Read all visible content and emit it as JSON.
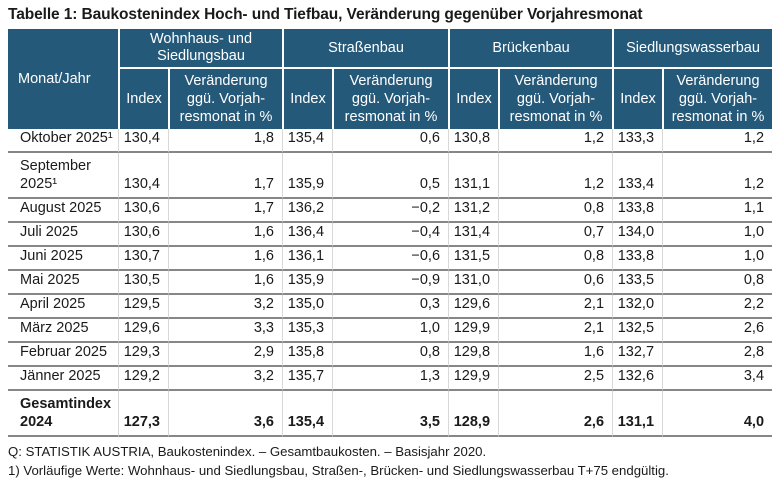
{
  "title": "Tabelle 1: Baukostenindex Hoch- und Tiefbau, Veränderung gegenüber Vorjahresmonat",
  "header": {
    "corner": "Monat/Jahr",
    "index_label": "Index",
    "change_label": "Veränderung ggü. Vorjahresmonat in %",
    "change_label_wrap": "Veränderung\nggü. Vorjah-\nresmonat in %",
    "groups": [
      {
        "label": "Wohnhaus- und Siedlungsbau",
        "wrap": "Wohnhaus- und\nSiedlungsbau"
      },
      {
        "label": "Straßenbau",
        "wrap": "Straßenbau"
      },
      {
        "label": "Brückenbau",
        "wrap": "Brückenbau"
      },
      {
        "label": "Siedlungswasserbau",
        "wrap": "Siedlungswasserbau"
      }
    ]
  },
  "chart_data": {
    "type": "table",
    "title": "Tabelle 1: Baukostenindex Hoch- und Tiefbau, Veränderung gegenüber Vorjahresmonat",
    "columns": [
      "Monat/Jahr",
      "Wohnhaus- und Siedlungsbau – Index",
      "Wohnhaus- und Siedlungsbau – Veränderung ggü. Vorjahresmonat in %",
      "Straßenbau – Index",
      "Straßenbau – Veränderung ggü. Vorjahresmonat in %",
      "Brückenbau – Index",
      "Brückenbau – Veränderung ggü. Vorjahresmonat in %",
      "Siedlungswasserbau – Index",
      "Siedlungswasserbau – Veränderung ggü. Vorjahresmonat in %"
    ],
    "rows": [
      {
        "month": "Oktober 2025¹",
        "values": [
          "130,4",
          "1,8",
          "135,4",
          "0,6",
          "130,8",
          "1,2",
          "133,3",
          "1,2"
        ]
      },
      {
        "month": "September 2025¹",
        "wrap": "September\n2025¹",
        "values": [
          "130,4",
          "1,7",
          "135,9",
          "0,5",
          "131,1",
          "1,2",
          "133,4",
          "1,2"
        ]
      },
      {
        "month": "August 2025",
        "values": [
          "130,6",
          "1,7",
          "136,2",
          "−0,2",
          "131,2",
          "0,8",
          "133,8",
          "1,1"
        ]
      },
      {
        "month": "Juli 2025",
        "values": [
          "130,6",
          "1,6",
          "136,4",
          "−0,4",
          "131,4",
          "0,7",
          "134,0",
          "1,0"
        ]
      },
      {
        "month": "Juni 2025",
        "values": [
          "130,7",
          "1,6",
          "136,1",
          "−0,6",
          "131,5",
          "0,8",
          "133,8",
          "1,0"
        ]
      },
      {
        "month": "Mai 2025",
        "values": [
          "130,5",
          "1,6",
          "135,9",
          "−0,9",
          "131,0",
          "0,6",
          "133,5",
          "0,8"
        ]
      },
      {
        "month": "April 2025",
        "values": [
          "129,5",
          "3,2",
          "135,0",
          "0,3",
          "129,6",
          "2,1",
          "132,0",
          "2,2"
        ]
      },
      {
        "month": "März 2025",
        "values": [
          "129,6",
          "3,3",
          "135,3",
          "1,0",
          "129,9",
          "2,1",
          "132,5",
          "2,6"
        ]
      },
      {
        "month": "Februar 2025",
        "values": [
          "129,3",
          "2,9",
          "135,8",
          "0,8",
          "129,8",
          "1,6",
          "132,7",
          "2,8"
        ]
      },
      {
        "month": "Jänner 2025",
        "values": [
          "129,2",
          "3,2",
          "135,7",
          "1,3",
          "129,9",
          "2,5",
          "132,6",
          "3,4"
        ]
      },
      {
        "month": "Gesamtindex 2024",
        "wrap": "Gesamtindex\n2024",
        "bold": true,
        "values": [
          "127,3",
          "3,6",
          "135,4",
          "3,5",
          "128,9",
          "2,6",
          "131,1",
          "4,0"
        ]
      }
    ]
  },
  "footnotes": [
    "Q: STATISTIK AUSTRIA, Baukostenindex. – Gesamtbaukosten. – Basisjahr 2020.",
    "1) Vorläufige Werte: Wohnhaus- und Siedlungsbau, Straßen-, Brücken- und Siedlungswasserbau T+75 endgültig."
  ],
  "colors": {
    "header_bg": "#25597a",
    "header_text": "#ffffff",
    "row_divider": "#868686",
    "col_divider": "#d8d8d8",
    "text": "#1a1a1a"
  }
}
